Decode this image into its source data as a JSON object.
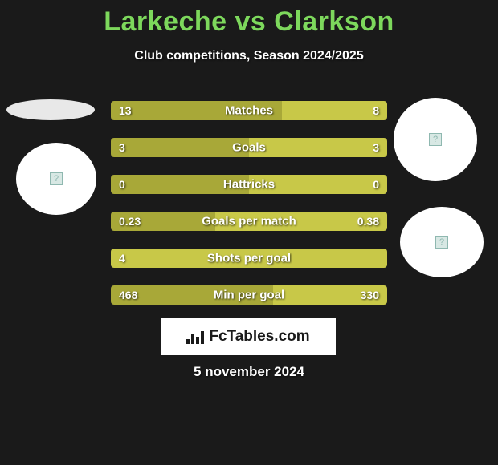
{
  "title": {
    "player1": "Larkeche",
    "vs": "vs",
    "player2": "Clarkson",
    "color": "#7dd85c",
    "fontsize": 34
  },
  "subtitle": "Club competitions, Season 2024/2025",
  "colors": {
    "background": "#1a1a1a",
    "bar_left": "#a8a838",
    "bar_right": "#c8c848",
    "text": "#ffffff",
    "placeholder_bg": "#d8e8e4",
    "placeholder_border": "#8fb8b0"
  },
  "stats": [
    {
      "label": "Matches",
      "left_val": "13",
      "right_val": "8",
      "left_pct": 61.9,
      "right_pct": 38.1,
      "left_color": "#a8a838",
      "right_color": "#c8c848"
    },
    {
      "label": "Goals",
      "left_val": "3",
      "right_val": "3",
      "left_pct": 50.0,
      "right_pct": 50.0,
      "left_color": "#a8a838",
      "right_color": "#c8c848"
    },
    {
      "label": "Hattricks",
      "left_val": "0",
      "right_val": "0",
      "left_pct": 50.0,
      "right_pct": 50.0,
      "left_color": "#a8a838",
      "right_color": "#c8c848"
    },
    {
      "label": "Goals per match",
      "left_val": "0.23",
      "right_val": "0.38",
      "left_pct": 37.7,
      "right_pct": 62.3,
      "left_color": "#a8a838",
      "right_color": "#c8c848"
    },
    {
      "label": "Shots per goal",
      "left_val": "4",
      "right_val": "",
      "left_pct": 100,
      "right_pct": 0,
      "left_color": "#c8c848",
      "right_color": "#c8c848"
    },
    {
      "label": "Min per goal",
      "left_val": "468",
      "right_val": "330",
      "left_pct": 58.6,
      "right_pct": 41.4,
      "left_color": "#a8a838",
      "right_color": "#c8c848"
    }
  ],
  "footer": {
    "logo_text": "FcTables.com",
    "date": "5 november 2024"
  },
  "placeholder_icon": "?"
}
